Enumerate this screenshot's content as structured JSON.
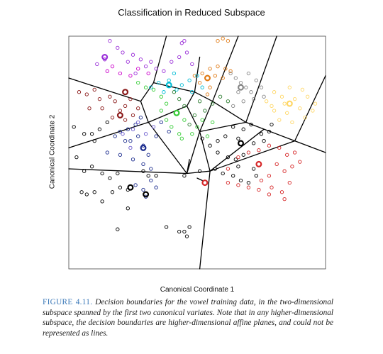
{
  "figure": {
    "label": "FIGURE 4.11.",
    "caption": "Decision boundaries for the vowel training data, in the two-dimensional subspace spanned by the first two canonical variates. Note that in any higher-dimensional subspace, the decision boundaries are higher-dimensional affine planes, and could not be represented as lines."
  },
  "chart_data": {
    "type": "scatter",
    "title": "Classification in Reduced Subspace",
    "xlabel": "Canonical Coordinate 1",
    "ylabel": "Canonical Coordinate 2",
    "xlim": [
      0,
      100
    ],
    "ylim": [
      0,
      100
    ],
    "grid": false,
    "legend": "none",
    "marker": "open-circle",
    "series": [
      {
        "color": "#000000",
        "points": [
          [
            2,
            61
          ],
          [
            6,
            58
          ],
          [
            9,
            58
          ],
          [
            12,
            60
          ],
          [
            15,
            63
          ],
          [
            10,
            55
          ],
          [
            3,
            48
          ],
          [
            6,
            42
          ],
          [
            9,
            44
          ],
          [
            13,
            41
          ],
          [
            16,
            39
          ],
          [
            19,
            41
          ],
          [
            10,
            33
          ],
          [
            7,
            32
          ],
          [
            13,
            29
          ],
          [
            5,
            33
          ],
          [
            17,
            33
          ],
          [
            20,
            35
          ],
          [
            23,
            34
          ],
          [
            29,
            42
          ],
          [
            31,
            40
          ],
          [
            34,
            40
          ],
          [
            23,
            26
          ],
          [
            38,
            18
          ],
          [
            43,
            16
          ],
          [
            45,
            16
          ],
          [
            46,
            14
          ],
          [
            47,
            18
          ],
          [
            52,
            56
          ],
          [
            55,
            53
          ],
          [
            58,
            55
          ],
          [
            61,
            57
          ],
          [
            64,
            61
          ],
          [
            66,
            56
          ],
          [
            68,
            60
          ],
          [
            71,
            62
          ],
          [
            58,
            50
          ],
          [
            62,
            48
          ],
          [
            65,
            47
          ],
          [
            68,
            49
          ],
          [
            72,
            54
          ],
          [
            75,
            58
          ],
          [
            76,
            55
          ],
          [
            66,
            44
          ],
          [
            64,
            40
          ],
          [
            67,
            38
          ],
          [
            70,
            37
          ],
          [
            73,
            40
          ],
          [
            72,
            43
          ],
          [
            45,
            40
          ],
          [
            51,
            42
          ],
          [
            57,
            43
          ],
          [
            60,
            41
          ],
          [
            79,
            62
          ],
          [
            78,
            59
          ],
          [
            19,
            17
          ]
        ]
      },
      {
        "color": "#1b2c8e",
        "points": [
          [
            18,
            57
          ],
          [
            20,
            59
          ],
          [
            23,
            60
          ],
          [
            26,
            62
          ],
          [
            28,
            65
          ],
          [
            24,
            55
          ],
          [
            27,
            57
          ],
          [
            29,
            53
          ],
          [
            31,
            49
          ],
          [
            15,
            50
          ],
          [
            20,
            49
          ],
          [
            25,
            47
          ],
          [
            29,
            45
          ],
          [
            32,
            43
          ],
          [
            26,
            36
          ],
          [
            29,
            34
          ],
          [
            30,
            31
          ],
          [
            32,
            38
          ],
          [
            34,
            35
          ],
          [
            34,
            57
          ],
          [
            36,
            63
          ],
          [
            39,
            59
          ],
          [
            22,
            55
          ]
        ]
      },
      {
        "color": "#8b1a1a",
        "points": [
          [
            4,
            76
          ],
          [
            7,
            75
          ],
          [
            10,
            77
          ],
          [
            12,
            73
          ],
          [
            16,
            74
          ],
          [
            18,
            72
          ],
          [
            20,
            68
          ],
          [
            22,
            70
          ],
          [
            24,
            73
          ],
          [
            22,
            64
          ],
          [
            25,
            66
          ],
          [
            27,
            69
          ],
          [
            13,
            69
          ],
          [
            17,
            65
          ],
          [
            8,
            69
          ]
        ]
      },
      {
        "color": "#d62728",
        "points": [
          [
            62,
            43
          ],
          [
            66,
            48
          ],
          [
            70,
            50
          ],
          [
            74,
            51
          ],
          [
            78,
            53
          ],
          [
            82,
            52
          ],
          [
            85,
            49
          ],
          [
            88,
            50
          ],
          [
            90,
            46
          ],
          [
            87,
            44
          ],
          [
            84,
            42
          ],
          [
            81,
            45
          ],
          [
            78,
            40
          ],
          [
            75,
            38
          ],
          [
            79,
            35
          ],
          [
            83,
            33
          ],
          [
            86,
            37
          ],
          [
            84,
            30
          ],
          [
            78,
            32
          ],
          [
            74,
            34
          ],
          [
            70,
            35
          ],
          [
            66,
            36
          ],
          [
            62,
            37
          ]
        ]
      },
      {
        "color": "#9b30d9",
        "points": [
          [
            16,
            98
          ],
          [
            19,
            95
          ],
          [
            21,
            93
          ],
          [
            23,
            89
          ],
          [
            25,
            92
          ],
          [
            28,
            90
          ],
          [
            30,
            87
          ],
          [
            32,
            89
          ],
          [
            34,
            86
          ],
          [
            37,
            85
          ],
          [
            40,
            89
          ],
          [
            43,
            91
          ],
          [
            46,
            93
          ],
          [
            48,
            88
          ],
          [
            11,
            88
          ],
          [
            14,
            90
          ],
          [
            44,
            97
          ],
          [
            45,
            98
          ],
          [
            26,
            84
          ]
        ]
      },
      {
        "color": "#e07a14",
        "points": [
          [
            52,
            84
          ],
          [
            55,
            86
          ],
          [
            58,
            87
          ],
          [
            61,
            86
          ],
          [
            63,
            85
          ],
          [
            60,
            82
          ],
          [
            57,
            83
          ],
          [
            55,
            78
          ],
          [
            54,
            75
          ],
          [
            51,
            80
          ],
          [
            49,
            83
          ],
          [
            58,
            98
          ],
          [
            60,
            99
          ],
          [
            62,
            98
          ]
        ]
      },
      {
        "color": "#2e7d32",
        "points": [
          [
            41,
            76
          ],
          [
            43,
            73
          ],
          [
            45,
            70
          ],
          [
            49,
            66
          ],
          [
            51,
            72
          ],
          [
            53,
            68
          ],
          [
            56,
            71
          ],
          [
            59,
            74
          ],
          [
            62,
            72
          ],
          [
            47,
            62
          ]
        ]
      },
      {
        "color": "#33cc33",
        "points": [
          [
            27,
            80
          ],
          [
            30,
            78
          ],
          [
            33,
            77
          ],
          [
            36,
            74
          ],
          [
            38,
            71
          ],
          [
            38,
            64
          ],
          [
            40,
            61
          ],
          [
            43,
            58
          ],
          [
            45,
            64
          ],
          [
            48,
            58
          ],
          [
            50,
            61
          ],
          [
            52,
            64
          ],
          [
            54,
            57
          ],
          [
            56,
            63
          ],
          [
            44,
            56
          ],
          [
            36,
            68
          ]
        ]
      },
      {
        "color": "#00bcd4",
        "points": [
          [
            32,
            78
          ],
          [
            35,
            80
          ],
          [
            39,
            81
          ],
          [
            41,
            84
          ],
          [
            44,
            79
          ],
          [
            47,
            81
          ],
          [
            50,
            83
          ],
          [
            52,
            78
          ],
          [
            48,
            76
          ],
          [
            42,
            77
          ],
          [
            37,
            76
          ]
        ]
      },
      {
        "color": "#888888",
        "points": [
          [
            63,
            84
          ],
          [
            65,
            82
          ],
          [
            67,
            80
          ],
          [
            69,
            78
          ],
          [
            71,
            76
          ],
          [
            66,
            76
          ],
          [
            70,
            84
          ],
          [
            73,
            81
          ],
          [
            75,
            78
          ],
          [
            72,
            73
          ],
          [
            76,
            74
          ],
          [
            68,
            72
          ],
          [
            64,
            70
          ]
        ]
      },
      {
        "color": "#ffd766",
        "points": [
          [
            77,
            72
          ],
          [
            80,
            76
          ],
          [
            83,
            74
          ],
          [
            86,
            78
          ],
          [
            88,
            73
          ],
          [
            91,
            77
          ],
          [
            93,
            74
          ],
          [
            96,
            71
          ],
          [
            90,
            69
          ],
          [
            85,
            67
          ],
          [
            80,
            68
          ],
          [
            82,
            64
          ],
          [
            87,
            63
          ],
          [
            92,
            65
          ],
          [
            95,
            68
          ],
          [
            79,
            70
          ],
          [
            84,
            71
          ]
        ]
      },
      {
        "color": "#6a5acd",
        "points": [
          [
            25,
            60
          ],
          [
            27,
            63
          ],
          [
            30,
            58
          ],
          [
            33,
            61
          ],
          [
            21,
            58
          ],
          [
            24,
            52
          ]
        ]
      },
      {
        "color": "#cc00cc",
        "points": [
          [
            15,
            85
          ],
          [
            17,
            87
          ],
          [
            20,
            84
          ],
          [
            24,
            83
          ],
          [
            27,
            86
          ],
          [
            31,
            84
          ]
        ]
      }
    ],
    "class_centroids": [
      {
        "color": "#000000",
        "x": 24,
        "y": 35
      },
      {
        "color": "#1b2c8e",
        "x": 29,
        "y": 52
      },
      {
        "color": "#8b1a1a",
        "x": 22,
        "y": 76
      },
      {
        "color": "#8b1a1a",
        "x": 20,
        "y": 66
      },
      {
        "color": "#d62728",
        "x": 74,
        "y": 45
      },
      {
        "color": "#d62728",
        "x": 53,
        "y": 37
      },
      {
        "color": "#9b30d9",
        "x": 14,
        "y": 91
      },
      {
        "color": "#e07a14",
        "x": 54,
        "y": 82
      },
      {
        "color": "#33cc33",
        "x": 42,
        "y": 67
      },
      {
        "color": "#00bcd4",
        "x": 39,
        "y": 79
      },
      {
        "color": "#888888",
        "x": 67,
        "y": 78
      },
      {
        "color": "#ffd766",
        "x": 86,
        "y": 71
      },
      {
        "color": "#000000",
        "x": 67,
        "y": 54
      },
      {
        "color": "#000000",
        "x": 30,
        "y": 32
      }
    ],
    "decision_boundaries": [
      [
        [
          0,
          82
        ],
        [
          28,
          72
        ]
      ],
      [
        [
          28,
          72
        ],
        [
          33,
          80
        ]
      ],
      [
        [
          33,
          80
        ],
        [
          38,
          100
        ]
      ],
      [
        [
          33,
          80
        ],
        [
          49,
          76
        ]
      ],
      [
        [
          49,
          76
        ],
        [
          51,
          91
        ]
      ],
      [
        [
          49,
          76
        ],
        [
          56,
          72
        ]
      ],
      [
        [
          56,
          72
        ],
        [
          66,
          100
        ]
      ],
      [
        [
          56,
          72
        ],
        [
          69,
          63
        ]
      ],
      [
        [
          69,
          63
        ],
        [
          81,
          100
        ]
      ],
      [
        [
          69,
          63
        ],
        [
          88,
          55
        ]
      ],
      [
        [
          88,
          55
        ],
        [
          100,
          50
        ]
      ],
      [
        [
          88,
          55
        ],
        [
          100,
          83
        ]
      ],
      [
        [
          28,
          72
        ],
        [
          31,
          63
        ]
      ],
      [
        [
          0,
          52
        ],
        [
          31,
          63
        ]
      ],
      [
        [
          31,
          63
        ],
        [
          46,
          70
        ]
      ],
      [
        [
          46,
          70
        ],
        [
          49,
          76
        ]
      ],
      [
        [
          46,
          70
        ],
        [
          51,
          59
        ]
      ],
      [
        [
          51,
          59
        ],
        [
          56,
          72
        ]
      ],
      [
        [
          51,
          59
        ],
        [
          69,
          63
        ]
      ],
      [
        [
          51,
          59
        ],
        [
          46,
          41
        ]
      ],
      [
        [
          31,
          63
        ],
        [
          46,
          41
        ]
      ],
      [
        [
          0,
          43
        ],
        [
          46,
          41
        ]
      ],
      [
        [
          46,
          41
        ],
        [
          47,
          47
        ]
      ],
      [
        [
          51,
          59
        ],
        [
          55,
          42
        ]
      ],
      [
        [
          55,
          42
        ],
        [
          46,
          41
        ]
      ],
      [
        [
          55,
          42
        ],
        [
          88,
          55
        ]
      ],
      [
        [
          55,
          42
        ],
        [
          51,
          0
        ]
      ],
      [
        [
          55,
          42
        ],
        [
          76,
          60
        ]
      ],
      [
        [
          50,
          39
        ],
        [
          52,
          38
        ]
      ]
    ]
  }
}
